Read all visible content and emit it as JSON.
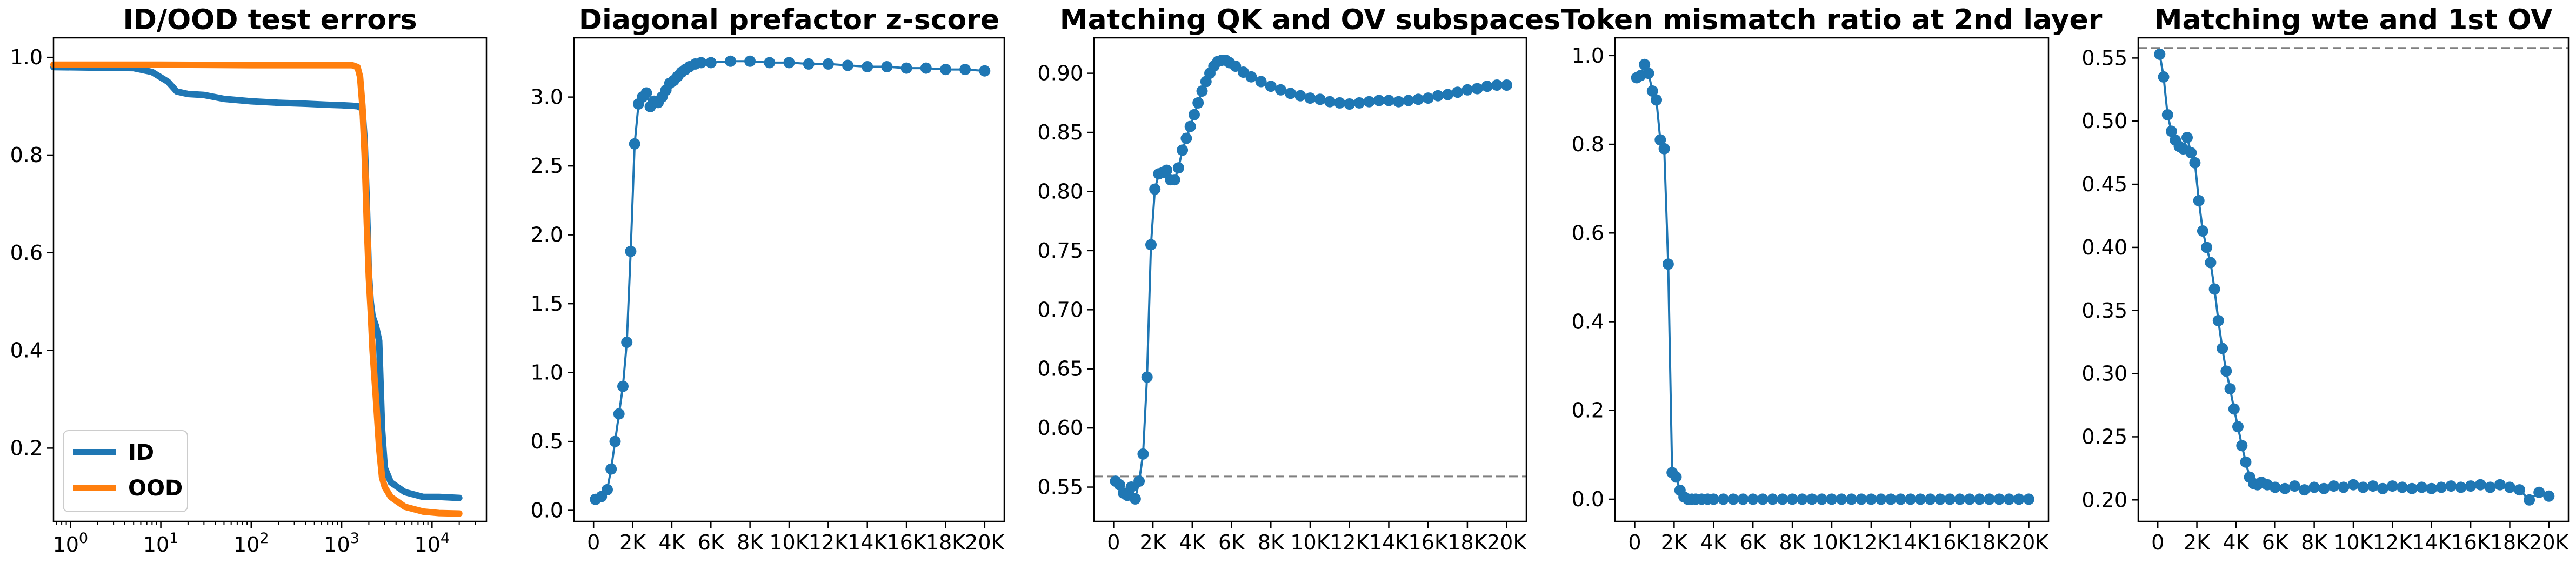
{
  "colors": {
    "blue": "#1f77b4",
    "orange": "#ff7f0e",
    "ref_line": "#7f7f7f"
  },
  "chart_data": [
    {
      "type": "line",
      "title": "ID/OOD test errors",
      "xscale": "log",
      "xlim": [
        0.65,
        40000
      ],
      "ylim": [
        0.05,
        1.04
      ],
      "x_ticks": [
        1,
        10,
        100,
        1000,
        10000
      ],
      "x_tick_labels": [
        [
          "10",
          "0"
        ],
        [
          "10",
          "1"
        ],
        [
          "10",
          "2"
        ],
        [
          "10",
          "3"
        ],
        [
          "10",
          "4"
        ]
      ],
      "y_ticks": [
        0.2,
        0.4,
        0.6,
        0.8,
        1.0
      ],
      "y_tick_labels": [
        "0.2",
        "0.4",
        "0.6",
        "0.8",
        "1.0"
      ],
      "legend": {
        "position": "lower-left",
        "entries": [
          "ID",
          "OOD"
        ]
      },
      "series": [
        {
          "name": "ID",
          "color": "blue",
          "x": [
            0.65,
            5,
            8,
            12,
            15,
            20,
            30,
            50,
            100,
            200,
            400,
            700,
            1000,
            1300,
            1500,
            1700,
            1800,
            1900,
            2000,
            2100,
            2200,
            2400,
            2600,
            2800,
            3000,
            3500,
            5000,
            8000,
            12000,
            20000
          ],
          "y": [
            0.98,
            0.978,
            0.97,
            0.95,
            0.93,
            0.925,
            0.923,
            0.915,
            0.91,
            0.907,
            0.905,
            0.903,
            0.902,
            0.901,
            0.9,
            0.895,
            0.83,
            0.7,
            0.56,
            0.5,
            0.47,
            0.45,
            0.42,
            0.24,
            0.16,
            0.13,
            0.11,
            0.1,
            0.1,
            0.098
          ]
        },
        {
          "name": "OOD",
          "color": "orange",
          "x": [
            0.65,
            10,
            100,
            1000,
            1300,
            1500,
            1600,
            1700,
            1800,
            1900,
            2000,
            2100,
            2200,
            2400,
            2600,
            2800,
            3000,
            3500,
            5000,
            8000,
            12000,
            20000
          ],
          "y": [
            0.985,
            0.985,
            0.984,
            0.984,
            0.984,
            0.98,
            0.96,
            0.9,
            0.8,
            0.66,
            0.55,
            0.48,
            0.4,
            0.3,
            0.2,
            0.14,
            0.12,
            0.1,
            0.08,
            0.07,
            0.067,
            0.066
          ]
        }
      ]
    },
    {
      "type": "line",
      "title": "Diagonal prefactor z-score",
      "xlim": [
        -1000,
        21000
      ],
      "ylim": [
        -0.08,
        3.43
      ],
      "x_ticks": [
        0,
        2000,
        4000,
        6000,
        8000,
        10000,
        12000,
        14000,
        16000,
        18000,
        20000
      ],
      "x_tick_labels": [
        "0",
        "2K",
        "4K",
        "6K",
        "8K",
        "10K",
        "12K",
        "14K",
        "16K",
        "18K",
        "20K"
      ],
      "y_ticks": [
        0,
        0.5,
        1.0,
        1.5,
        2.0,
        2.5,
        3.0
      ],
      "y_tick_labels": [
        "0.0",
        "0.5",
        "1.0",
        "1.5",
        "2.0",
        "2.5",
        "3.0"
      ],
      "marker": "circle",
      "series": [
        {
          "color": "blue",
          "x": [
            100,
            400,
            700,
            900,
            1100,
            1300,
            1500,
            1700,
            1900,
            2100,
            2300,
            2500,
            2700,
            2900,
            3100,
            3300,
            3500,
            3700,
            3900,
            4100,
            4300,
            4500,
            4700,
            4900,
            5200,
            5500,
            6000,
            7000,
            8000,
            9000,
            10000,
            11000,
            12000,
            13000,
            14000,
            15000,
            16000,
            17000,
            18000,
            19000,
            20000
          ],
          "y": [
            0.08,
            0.1,
            0.15,
            0.3,
            0.5,
            0.7,
            0.9,
            1.22,
            1.88,
            2.66,
            2.95,
            3.0,
            3.03,
            2.93,
            2.97,
            2.96,
            3.0,
            3.05,
            3.1,
            3.12,
            3.15,
            3.18,
            3.2,
            3.22,
            3.24,
            3.25,
            3.25,
            3.26,
            3.26,
            3.25,
            3.25,
            3.24,
            3.24,
            3.23,
            3.22,
            3.22,
            3.21,
            3.21,
            3.2,
            3.2,
            3.19
          ]
        }
      ]
    },
    {
      "type": "line",
      "title": "Matching QK and OV subspaces",
      "xlim": [
        -1000,
        21000
      ],
      "ylim": [
        0.521,
        0.93
      ],
      "x_ticks": [
        0,
        2000,
        4000,
        6000,
        8000,
        10000,
        12000,
        14000,
        16000,
        18000,
        20000
      ],
      "x_tick_labels": [
        "0",
        "2K",
        "4K",
        "6K",
        "8K",
        "10K",
        "12K",
        "14K",
        "16K",
        "18K",
        "20K"
      ],
      "y_ticks": [
        0.55,
        0.6,
        0.65,
        0.7,
        0.75,
        0.8,
        0.85,
        0.9
      ],
      "y_tick_labels": [
        "0.55",
        "0.60",
        "0.65",
        "0.70",
        "0.75",
        "0.80",
        "0.85",
        "0.90"
      ],
      "marker": "circle",
      "reference_line": {
        "y": 0.559,
        "style": "dashed",
        "color": "ref_line"
      },
      "series": [
        {
          "color": "blue",
          "x": [
            100,
            300,
            500,
            700,
            900,
            1100,
            1300,
            1500,
            1700,
            1900,
            2100,
            2300,
            2500,
            2700,
            2900,
            3100,
            3300,
            3500,
            3700,
            3900,
            4100,
            4300,
            4500,
            4700,
            4900,
            5100,
            5300,
            5500,
            5700,
            5900,
            6200,
            6600,
            7000,
            7500,
            8000,
            8500,
            9000,
            9500,
            10000,
            10500,
            11000,
            11500,
            12000,
            12500,
            13000,
            13500,
            14000,
            14500,
            15000,
            15500,
            16000,
            16500,
            17000,
            17500,
            18000,
            18500,
            19000,
            19500,
            20000
          ],
          "y": [
            0.555,
            0.552,
            0.545,
            0.543,
            0.55,
            0.54,
            0.555,
            0.578,
            0.643,
            0.755,
            0.802,
            0.815,
            0.816,
            0.818,
            0.81,
            0.81,
            0.82,
            0.835,
            0.845,
            0.855,
            0.865,
            0.875,
            0.885,
            0.893,
            0.9,
            0.906,
            0.91,
            0.911,
            0.911,
            0.909,
            0.906,
            0.901,
            0.897,
            0.893,
            0.889,
            0.886,
            0.883,
            0.881,
            0.879,
            0.878,
            0.876,
            0.875,
            0.874,
            0.875,
            0.876,
            0.877,
            0.877,
            0.876,
            0.877,
            0.878,
            0.879,
            0.881,
            0.882,
            0.884,
            0.886,
            0.887,
            0.889,
            0.89,
            0.89
          ]
        }
      ]
    },
    {
      "type": "line",
      "title": "Token mismatch ratio at 2nd layer",
      "xlim": [
        -1000,
        21000
      ],
      "ylim": [
        -0.05,
        1.04
      ],
      "x_ticks": [
        0,
        2000,
        4000,
        6000,
        8000,
        10000,
        12000,
        14000,
        16000,
        18000,
        20000
      ],
      "x_tick_labels": [
        "0",
        "2K",
        "4K",
        "6K",
        "8K",
        "10K",
        "12K",
        "14K",
        "16K",
        "18K",
        "20K"
      ],
      "y_ticks": [
        0,
        0.2,
        0.4,
        0.6,
        0.8,
        1.0
      ],
      "y_tick_labels": [
        "0.0",
        "0.2",
        "0.4",
        "0.6",
        "0.8",
        "1.0"
      ],
      "marker": "circle",
      "series": [
        {
          "color": "blue",
          "x": [
            100,
            300,
            500,
            700,
            900,
            1100,
            1300,
            1500,
            1700,
            1900,
            2100,
            2300,
            2500,
            2700,
            2900,
            3100,
            3400,
            3700,
            4000,
            4500,
            5000,
            5500,
            6000,
            6500,
            7000,
            7500,
            8000,
            8500,
            9000,
            9500,
            10000,
            10500,
            11000,
            11500,
            12000,
            12500,
            13000,
            13500,
            14000,
            14500,
            15000,
            15500,
            16000,
            16500,
            17000,
            17500,
            18000,
            18500,
            19000,
            19500,
            20000
          ],
          "y": [
            0.95,
            0.955,
            0.98,
            0.96,
            0.92,
            0.9,
            0.81,
            0.79,
            0.53,
            0.06,
            0.05,
            0.02,
            0.005,
            0.0,
            0.0,
            0.0,
            0.0,
            0.0,
            0.0,
            0.0,
            0.0,
            0.0,
            0.0,
            0.0,
            0.0,
            0.0,
            0.0,
            0.0,
            0.0,
            0.0,
            0.0,
            0.0,
            0.0,
            0.0,
            0.0,
            0.0,
            0.0,
            0.0,
            0.0,
            0.0,
            0.0,
            0.0,
            0.0,
            0.0,
            0.0,
            0.0,
            0.0,
            0.0,
            0.0,
            0.0,
            0.0
          ]
        }
      ]
    },
    {
      "type": "line",
      "title": "Matching wte and 1st OV",
      "xlim": [
        -1000,
        21000
      ],
      "ylim": [
        0.183,
        0.566
      ],
      "x_ticks": [
        0,
        2000,
        4000,
        6000,
        8000,
        10000,
        12000,
        14000,
        16000,
        18000,
        20000
      ],
      "x_tick_labels": [
        "0",
        "2K",
        "4K",
        "6K",
        "8K",
        "10K",
        "12K",
        "14K",
        "16K",
        "18K",
        "20K"
      ],
      "y_ticks": [
        0.2,
        0.25,
        0.3,
        0.35,
        0.4,
        0.45,
        0.5,
        0.55
      ],
      "y_tick_labels": [
        "0.20",
        "0.25",
        "0.30",
        "0.35",
        "0.40",
        "0.45",
        "0.50",
        "0.55"
      ],
      "marker": "circle",
      "reference_line": {
        "y": 0.558,
        "style": "dashed",
        "color": "ref_line"
      },
      "series": [
        {
          "color": "blue",
          "x": [
            100,
            300,
            500,
            700,
            900,
            1100,
            1300,
            1500,
            1700,
            1900,
            2100,
            2300,
            2500,
            2700,
            2900,
            3100,
            3300,
            3500,
            3700,
            3900,
            4100,
            4300,
            4500,
            4700,
            4900,
            5100,
            5300,
            5600,
            6000,
            6500,
            7000,
            7500,
            8000,
            8500,
            9000,
            9500,
            10000,
            10500,
            11000,
            11500,
            12000,
            12500,
            13000,
            13500,
            14000,
            14500,
            15000,
            15500,
            16000,
            16500,
            17000,
            17500,
            18000,
            18500,
            19000,
            19500,
            20000
          ],
          "y": [
            0.553,
            0.535,
            0.505,
            0.492,
            0.485,
            0.48,
            0.478,
            0.487,
            0.475,
            0.467,
            0.437,
            0.413,
            0.4,
            0.388,
            0.367,
            0.342,
            0.32,
            0.302,
            0.288,
            0.272,
            0.258,
            0.243,
            0.23,
            0.218,
            0.213,
            0.212,
            0.214,
            0.212,
            0.21,
            0.209,
            0.211,
            0.208,
            0.21,
            0.209,
            0.211,
            0.21,
            0.212,
            0.21,
            0.211,
            0.209,
            0.211,
            0.21,
            0.209,
            0.21,
            0.209,
            0.21,
            0.211,
            0.21,
            0.211,
            0.212,
            0.21,
            0.212,
            0.21,
            0.208,
            0.2,
            0.206,
            0.203
          ]
        }
      ]
    }
  ]
}
